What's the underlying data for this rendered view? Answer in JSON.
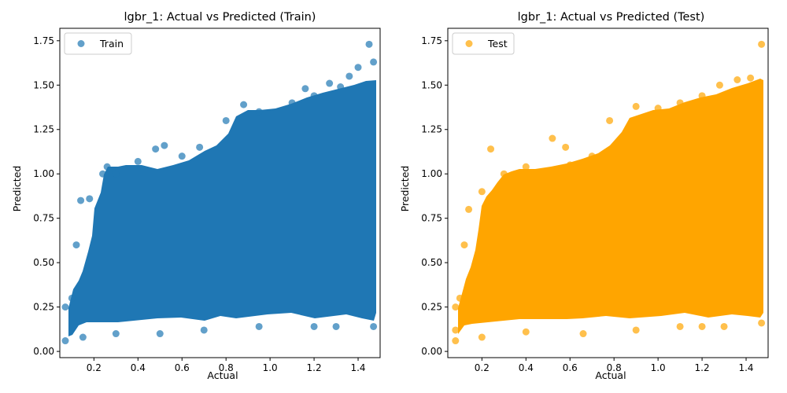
{
  "chart_data": [
    {
      "type": "scatter",
      "title": "lgbr_1: Actual vs Predicted (Train)",
      "xlabel": "Actual",
      "ylabel": "Predicted",
      "xlim": [
        0.045,
        1.5
      ],
      "ylim": [
        -0.035,
        1.82
      ],
      "xticks": [
        "0.2",
        "0.4",
        "0.6",
        "0.8",
        "1.0",
        "1.2",
        "1.4"
      ],
      "yticks": [
        "0.00",
        "0.25",
        "0.50",
        "0.75",
        "1.00",
        "1.25",
        "1.50",
        "1.75"
      ],
      "legend": "upper left",
      "grid": false,
      "series": [
        {
          "name": "Train",
          "color": "#1f77b4",
          "points": [
            [
              0.07,
              0.06
            ],
            [
              0.07,
              0.25
            ],
            [
              0.1,
              0.3
            ],
            [
              0.12,
              0.6
            ],
            [
              0.14,
              0.85
            ],
            [
              0.18,
              0.86
            ],
            [
              0.24,
              1.0
            ],
            [
              0.26,
              1.04
            ],
            [
              0.3,
              1.0
            ],
            [
              0.4,
              1.07
            ],
            [
              0.48,
              1.14
            ],
            [
              0.52,
              1.16
            ],
            [
              0.6,
              1.1
            ],
            [
              0.68,
              1.15
            ],
            [
              0.8,
              1.3
            ],
            [
              0.88,
              1.39
            ],
            [
              0.95,
              1.35
            ],
            [
              1.1,
              1.4
            ],
            [
              1.16,
              1.48
            ],
            [
              1.2,
              1.44
            ],
            [
              1.27,
              1.51
            ],
            [
              1.32,
              1.49
            ],
            [
              1.36,
              1.55
            ],
            [
              1.4,
              1.6
            ],
            [
              1.45,
              1.73
            ],
            [
              1.47,
              1.63
            ],
            [
              1.47,
              0.14
            ],
            [
              1.3,
              0.14
            ],
            [
              1.2,
              0.14
            ],
            [
              0.95,
              0.14
            ],
            [
              0.7,
              0.12
            ],
            [
              0.5,
              0.1
            ],
            [
              0.3,
              0.1
            ],
            [
              0.15,
              0.08
            ]
          ]
        }
      ]
    },
    {
      "type": "scatter",
      "title": "lgbr_1: Actual vs Predicted (Test)",
      "xlabel": "Actual",
      "ylabel": "Predicted",
      "xlim": [
        0.045,
        1.5
      ],
      "ylim": [
        -0.035,
        1.82
      ],
      "xticks": [
        "0.2",
        "0.4",
        "0.6",
        "0.8",
        "1.0",
        "1.2",
        "1.4"
      ],
      "yticks": [
        "0.00",
        "0.25",
        "0.50",
        "0.75",
        "1.00",
        "1.25",
        "1.50",
        "1.75"
      ],
      "legend": "upper left",
      "grid": false,
      "series": [
        {
          "name": "Test",
          "color": "#ffa500",
          "points": [
            [
              0.08,
              0.06
            ],
            [
              0.08,
              0.25
            ],
            [
              0.1,
              0.3
            ],
            [
              0.12,
              0.6
            ],
            [
              0.14,
              0.8
            ],
            [
              0.2,
              0.9
            ],
            [
              0.24,
              1.14
            ],
            [
              0.3,
              1.0
            ],
            [
              0.4,
              1.04
            ],
            [
              0.52,
              1.2
            ],
            [
              0.58,
              1.15
            ],
            [
              0.6,
              1.05
            ],
            [
              0.7,
              1.1
            ],
            [
              0.78,
              1.3
            ],
            [
              0.9,
              1.38
            ],
            [
              1.0,
              1.37
            ],
            [
              1.1,
              1.4
            ],
            [
              1.2,
              1.44
            ],
            [
              1.28,
              1.5
            ],
            [
              1.36,
              1.53
            ],
            [
              1.42,
              1.54
            ],
            [
              1.47,
              1.73
            ],
            [
              1.47,
              0.16
            ],
            [
              1.3,
              0.14
            ],
            [
              1.2,
              0.14
            ],
            [
              1.1,
              0.14
            ],
            [
              0.9,
              0.12
            ],
            [
              0.66,
              0.1
            ],
            [
              0.4,
              0.11
            ],
            [
              0.2,
              0.08
            ],
            [
              0.08,
              0.12
            ]
          ]
        }
      ]
    }
  ]
}
